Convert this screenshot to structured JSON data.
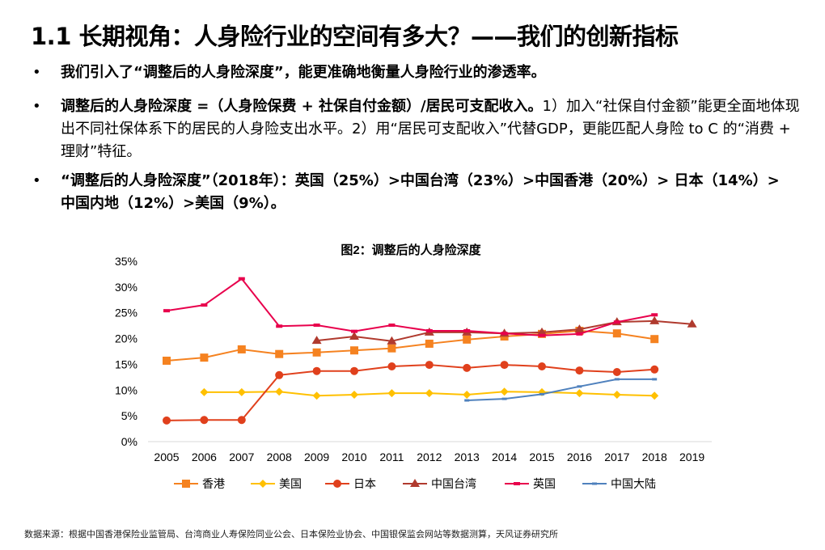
{
  "slide": {
    "title": "1.1 长期视角：人身险行业的空间有多大？——我们的创新指标",
    "bullets": [
      {
        "bold": "我们引入了“调整后的人身险深度”，能更准确地衡量人身险行业的渗透率。",
        "normal": ""
      },
      {
        "bold": "调整后的人身险深度 =（人身险保费 + 社保自付金额）/居民可支配收入。",
        "normal": "1）加入“社保自付金额”能更全面地体现出不同社保体系下的居民的人身险支出水平。2）用“居民可支配收入”代替GDP，更能匹配人身险 to C 的“消费 + 理财”特征。"
      },
      {
        "bold": "“调整后的人身险深度”（2018年）：英国（25%）>中国台湾（23%）>中国香港（20%）> 日本（14%）>　中国内地（12%）>美国（9%）。",
        "normal": ""
      }
    ],
    "bullet_symbol": "•",
    "source": "数据来源：根据中国香港保险业监管局、台湾商业人寿保险同业公会、日本保险业协会、中国银保监会网站等数据测算，天风证券研究所"
  },
  "chart_data": {
    "type": "line",
    "title": "图2：调整后的人身险深度",
    "xlabel": "",
    "ylabel": "",
    "categories": [
      "2005",
      "2006",
      "2007",
      "2008",
      "2009",
      "2010",
      "2011",
      "2012",
      "2013",
      "2014",
      "2015",
      "2016",
      "2017",
      "2018",
      "2019"
    ],
    "ylim": [
      0,
      35
    ],
    "yticks": [
      "0%",
      "5%",
      "10%",
      "15%",
      "20%",
      "25%",
      "30%",
      "35%"
    ],
    "grid": false,
    "legend": "bottom",
    "series": [
      {
        "name": "香港",
        "color": "#F58220",
        "marker": "square",
        "values": [
          15.7,
          16.3,
          17.9,
          17.0,
          17.3,
          17.7,
          18.1,
          19.0,
          19.8,
          20.4,
          20.9,
          21.5,
          21.0,
          19.9,
          null
        ]
      },
      {
        "name": "美国",
        "color": "#FFC000",
        "marker": "diamond",
        "values": [
          null,
          9.6,
          9.6,
          9.7,
          8.9,
          9.1,
          9.4,
          9.4,
          9.1,
          9.7,
          9.6,
          9.4,
          9.1,
          8.9,
          null
        ]
      },
      {
        "name": "日本",
        "color": "#E0401C",
        "marker": "circle",
        "values": [
          4.1,
          4.2,
          4.2,
          12.9,
          13.7,
          13.7,
          14.6,
          14.9,
          14.3,
          14.9,
          14.6,
          13.8,
          13.5,
          14.0,
          null
        ]
      },
      {
        "name": "中国台湾",
        "color": "#B03A2E",
        "marker": "triangle",
        "values": [
          null,
          null,
          null,
          null,
          19.6,
          20.4,
          19.5,
          21.2,
          21.2,
          21.0,
          21.2,
          21.8,
          23.2,
          23.4,
          22.8
        ]
      },
      {
        "name": "英国",
        "color": "#E8004C",
        "marker": "dash",
        "values": [
          25.4,
          26.5,
          31.6,
          22.4,
          22.6,
          21.4,
          22.6,
          21.5,
          21.5,
          21.0,
          20.6,
          20.9,
          23.2,
          24.6,
          null
        ]
      },
      {
        "name": "中国大陆",
        "color": "#4F81BD",
        "marker": "dot",
        "values": [
          null,
          null,
          null,
          null,
          null,
          null,
          null,
          null,
          8.0,
          8.3,
          9.2,
          10.7,
          12.1,
          12.1,
          null
        ]
      }
    ]
  }
}
